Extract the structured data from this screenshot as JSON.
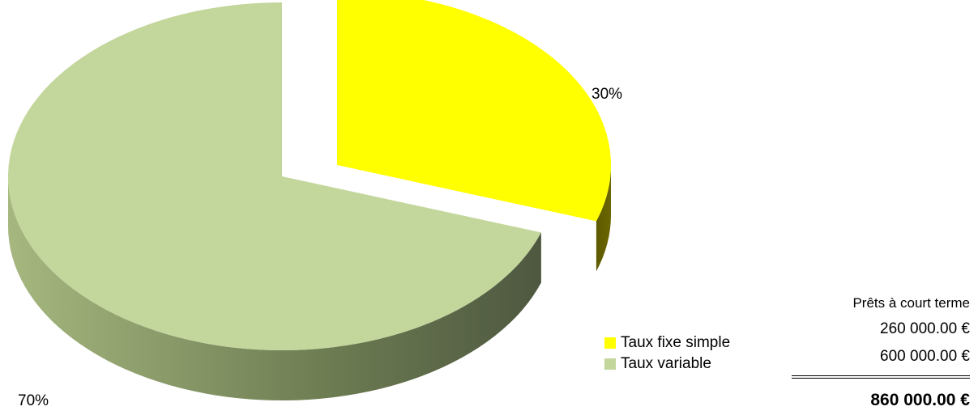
{
  "chart_data": {
    "type": "pie",
    "style": "3d-exploded",
    "slices": [
      {
        "name": "Taux fixe simple",
        "value": 260000,
        "percent_label": "30%",
        "color": "#FFFF00",
        "side_color": "#6B6600"
      },
      {
        "name": "Taux variable",
        "value": 600000,
        "percent_label": "70%",
        "color": "#C3D69B",
        "side_color": "#76885A"
      }
    ],
    "legend": [
      "Taux fixe simple",
      "Taux variable"
    ],
    "legend_position": "bottom-right"
  },
  "table": {
    "header": "Prêts à court terme",
    "rows": [
      "260 000.00 €",
      "600 000.00 €"
    ],
    "total": "860 000.00 €"
  }
}
